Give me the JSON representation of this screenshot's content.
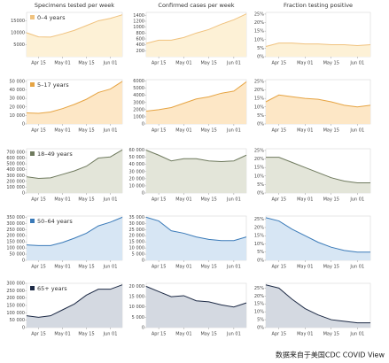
{
  "column_titles": [
    "Specimens tested per week",
    "Confirmed cases per week",
    "Fraction testing positive"
  ],
  "note": "数据来自于美国CDC COVID View",
  "chart_data": [
    {
      "type": "area",
      "categories": [
        null,
        "Apr 15",
        null,
        "May 01",
        null,
        "May 15",
        null,
        "Jun 01",
        null
      ],
      "series": [
        {
          "name": "0–4 years",
          "color": "#f0c27e",
          "fill": "#fdf1d6",
          "values": [
            10000,
            8300,
            8200,
            9500,
            11000,
            13000,
            15000,
            16000,
            17500
          ]
        }
      ],
      "ylim": [
        0,
        18500
      ],
      "yticks": [
        5000,
        10000,
        15000
      ]
    },
    {
      "type": "area",
      "categories": [
        null,
        "Apr 15",
        null,
        "May 01",
        null,
        "May 15",
        null,
        "Jun 01",
        null
      ],
      "series": [
        {
          "color": "#f0c27e",
          "fill": "#fdf1d6",
          "values": [
            450,
            560,
            560,
            650,
            800,
            920,
            1100,
            1250,
            1450
          ]
        }
      ],
      "ylim": [
        0,
        1500
      ],
      "yticks": [
        200,
        400,
        600,
        800,
        1000,
        1200,
        1400
      ]
    },
    {
      "type": "area",
      "categories": [
        null,
        "Apr 15",
        null,
        "May 01",
        null,
        "May 15",
        null,
        "Jun 01",
        null
      ],
      "series": [
        {
          "color": "#f0c27e",
          "fill": "#fdf1d6",
          "values": [
            6,
            8,
            8,
            7.5,
            7.5,
            7,
            7,
            6.5,
            7
          ]
        }
      ],
      "ylim": [
        0,
        26
      ],
      "yticks": [
        {
          "value": 0,
          "label": "0%"
        },
        {
          "value": 5,
          "label": "5%"
        },
        {
          "value": 10,
          "label": "10%"
        },
        {
          "value": 15,
          "label": "15%"
        },
        {
          "value": 20,
          "label": "20%"
        },
        {
          "value": 25,
          "label": "25%"
        }
      ]
    },
    {
      "type": "area",
      "categories": [
        null,
        "Apr 15",
        null,
        "May 01",
        null,
        "May 15",
        null,
        "Jun 01",
        null
      ],
      "series": [
        {
          "name": "5–17 years",
          "color": "#e6a443",
          "fill": "#fde7c6",
          "values": [
            13000,
            12500,
            14000,
            18000,
            23000,
            29000,
            37000,
            41000,
            50000
          ]
        }
      ],
      "ylim": [
        0,
        52000
      ],
      "yticks": [
        {
          "value": 0,
          "label": "0"
        },
        {
          "value": 10000,
          "label": "10 000"
        },
        {
          "value": 20000,
          "label": "20 000"
        },
        {
          "value": 30000,
          "label": "30 000"
        },
        {
          "value": 40000,
          "label": "40 000"
        },
        {
          "value": 50000,
          "label": "50 000"
        }
      ]
    },
    {
      "type": "area",
      "categories": [
        null,
        "Apr 15",
        null,
        "May 01",
        null,
        "May 15",
        null,
        "Jun 01",
        null
      ],
      "series": [
        {
          "color": "#e6a443",
          "fill": "#fde7c6",
          "values": [
            1800,
            2000,
            2300,
            2900,
            3500,
            3800,
            4300,
            4600,
            5900
          ]
        }
      ],
      "ylim": [
        0,
        6200
      ],
      "yticks": [
        0,
        1000,
        2000,
        3000,
        4000,
        5000,
        6000
      ]
    },
    {
      "type": "area",
      "categories": [
        null,
        "Apr 15",
        null,
        "May 01",
        null,
        "May 15",
        null,
        "Jun 01",
        null
      ],
      "series": [
        {
          "color": "#e6a443",
          "fill": "#fde7c6",
          "values": [
            13,
            17,
            16,
            15,
            14.5,
            13,
            11,
            10,
            11
          ]
        }
      ],
      "ylim": [
        0,
        26
      ],
      "yticks": [
        {
          "value": 0,
          "label": "0%"
        },
        {
          "value": 5,
          "label": "5%"
        },
        {
          "value": 10,
          "label": "10%"
        },
        {
          "value": 15,
          "label": "15%"
        },
        {
          "value": 20,
          "label": "20%"
        },
        {
          "value": 25,
          "label": "25%"
        }
      ]
    },
    {
      "type": "area",
      "categories": [
        null,
        "Apr 15",
        null,
        "May 01",
        null,
        "May 15",
        null,
        "Jun 01",
        null
      ],
      "series": [
        {
          "name": "18–49 years",
          "color": "#6f7a5e",
          "fill": "#e3e5d9",
          "values": [
            280000,
            250000,
            260000,
            320000,
            380000,
            460000,
            600000,
            620000,
            740000
          ]
        }
      ],
      "ylim": [
        0,
        760000
      ],
      "yticks": [
        {
          "value": 0,
          "label": "0"
        },
        {
          "value": 100000,
          "label": "100 000"
        },
        {
          "value": 200000,
          "label": "200 000"
        },
        {
          "value": 300000,
          "label": "300 000"
        },
        {
          "value": 400000,
          "label": "400 000"
        },
        {
          "value": 500000,
          "label": "500 000"
        },
        {
          "value": 600000,
          "label": "600 000"
        },
        {
          "value": 700000,
          "label": "700 000"
        }
      ]
    },
    {
      "type": "area",
      "categories": [
        null,
        "Apr 15",
        null,
        "May 01",
        null,
        "May 15",
        null,
        "Jun 01",
        null
      ],
      "series": [
        {
          "color": "#6f7a5e",
          "fill": "#e3e5d9",
          "values": [
            60000,
            53000,
            45000,
            48000,
            48000,
            45000,
            44000,
            45000,
            53000
          ]
        }
      ],
      "ylim": [
        0,
        62000
      ],
      "yticks": [
        {
          "value": 0,
          "label": "0"
        },
        {
          "value": 10000,
          "label": "10 000"
        },
        {
          "value": 20000,
          "label": "20 000"
        },
        {
          "value": 30000,
          "label": "30 000"
        },
        {
          "value": 40000,
          "label": "40 000"
        },
        {
          "value": 50000,
          "label": "50 000"
        },
        {
          "value": 60000,
          "label": "60 000"
        }
      ]
    },
    {
      "type": "area",
      "categories": [
        null,
        "Apr 15",
        null,
        "May 01",
        null,
        "May 15",
        null,
        "Jun 01",
        null
      ],
      "series": [
        {
          "color": "#6f7a5e",
          "fill": "#e3e5d9",
          "values": [
            21,
            21,
            18,
            15,
            12,
            9,
            7,
            6,
            6
          ]
        }
      ],
      "ylim": [
        0,
        26
      ],
      "yticks": [
        {
          "value": 0,
          "label": "0%"
        },
        {
          "value": 5,
          "label": "5%"
        },
        {
          "value": 10,
          "label": "10%"
        },
        {
          "value": 15,
          "label": "15%"
        },
        {
          "value": 20,
          "label": "20%"
        },
        {
          "value": 25,
          "label": "25%"
        }
      ]
    },
    {
      "type": "area",
      "categories": [
        null,
        "Apr 15",
        null,
        "May 01",
        null,
        "May 15",
        null,
        "Jun 01",
        null
      ],
      "series": [
        {
          "name": "50–64 years",
          "color": "#3a7ab8",
          "fill": "#d7e6f4",
          "values": [
            125000,
            120000,
            120000,
            145000,
            180000,
            220000,
            280000,
            310000,
            350000
          ]
        }
      ],
      "ylim": [
        0,
        360000
      ],
      "yticks": [
        {
          "value": 0,
          "label": "0"
        },
        {
          "value": 50000,
          "label": "50 000"
        },
        {
          "value": 100000,
          "label": "100 000"
        },
        {
          "value": 150000,
          "label": "150 000"
        },
        {
          "value": 200000,
          "label": "200 000"
        },
        {
          "value": 250000,
          "label": "250 000"
        },
        {
          "value": 300000,
          "label": "300 000"
        },
        {
          "value": 350000,
          "label": "350 000"
        }
      ]
    },
    {
      "type": "area",
      "categories": [
        null,
        "Apr 15",
        null,
        "May 01",
        null,
        "May 15",
        null,
        "Jun 01",
        null
      ],
      "series": [
        {
          "color": "#3a7ab8",
          "fill": "#d7e6f4",
          "values": [
            35000,
            32000,
            24000,
            22000,
            19000,
            17000,
            16000,
            16000,
            19000
          ]
        }
      ],
      "ylim": [
        0,
        36000
      ],
      "yticks": [
        {
          "value": 0,
          "label": "0"
        },
        {
          "value": 5000,
          "label": "5 000"
        },
        {
          "value": 10000,
          "label": "10 000"
        },
        {
          "value": 15000,
          "label": "15 000"
        },
        {
          "value": 20000,
          "label": "20 000"
        },
        {
          "value": 25000,
          "label": "25 000"
        },
        {
          "value": 30000,
          "label": "30 000"
        },
        {
          "value": 35000,
          "label": "35 000"
        }
      ]
    },
    {
      "type": "area",
      "categories": [
        null,
        "Apr 15",
        null,
        "May 01",
        null,
        "May 15",
        null,
        "Jun 01",
        null
      ],
      "series": [
        {
          "color": "#3a7ab8",
          "fill": "#d7e6f4",
          "values": [
            26,
            24,
            19,
            15,
            11,
            8,
            6,
            5,
            5
          ]
        }
      ],
      "ylim": [
        0,
        27
      ],
      "yticks": [
        {
          "value": 0,
          "label": "0%"
        },
        {
          "value": 5,
          "label": "5%"
        },
        {
          "value": 10,
          "label": "10%"
        },
        {
          "value": 15,
          "label": "15%"
        },
        {
          "value": 20,
          "label": "20%"
        },
        {
          "value": 25,
          "label": "25%"
        }
      ]
    },
    {
      "type": "area",
      "categories": [
        null,
        "Apr 15",
        null,
        "May 01",
        null,
        "May 15",
        null,
        "Jun 01",
        null
      ],
      "series": [
        {
          "name": "65+ years",
          "color": "#1d2a45",
          "fill": "#d4d9e1",
          "values": [
            80000,
            70000,
            80000,
            120000,
            160000,
            220000,
            260000,
            260000,
            290000
          ]
        }
      ],
      "ylim": [
        0,
        300000
      ],
      "yticks": [
        {
          "value": 0,
          "label": "0"
        },
        {
          "value": 50000,
          "label": "50 000"
        },
        {
          "value": 100000,
          "label": "100 000"
        },
        {
          "value": 150000,
          "label": "150 000"
        },
        {
          "value": 200000,
          "label": "200 000"
        },
        {
          "value": 250000,
          "label": "250 000"
        },
        {
          "value": 300000,
          "label": "300 000"
        }
      ]
    },
    {
      "type": "area",
      "categories": [
        null,
        "Apr 15",
        null,
        "May 01",
        null,
        "May 15",
        null,
        "Jun 01",
        null
      ],
      "series": [
        {
          "color": "#1d2a45",
          "fill": "#d4d9e1",
          "values": [
            20000,
            17500,
            15000,
            15500,
            13000,
            12500,
            11000,
            10000,
            12000
          ]
        }
      ],
      "ylim": [
        0,
        21500
      ],
      "yticks": [
        {
          "value": 0,
          "label": "0"
        },
        {
          "value": 5000,
          "label": "5 000"
        },
        {
          "value": 10000,
          "label": "10 000"
        },
        {
          "value": 15000,
          "label": "15 000"
        },
        {
          "value": 20000,
          "label": "20 000"
        }
      ]
    },
    {
      "type": "area",
      "categories": [
        null,
        "Apr 15",
        null,
        "May 01",
        null,
        "May 15",
        null,
        "Jun 01",
        null
      ],
      "series": [
        {
          "color": "#1d2a45",
          "fill": "#d4d9e1",
          "values": [
            27,
            25,
            18,
            12,
            8,
            5,
            4,
            3,
            3
          ]
        }
      ],
      "ylim": [
        0,
        28
      ],
      "yticks": [
        {
          "value": 0,
          "label": "0%"
        },
        {
          "value": 5,
          "label": "5%"
        },
        {
          "value": 10,
          "label": "10%"
        },
        {
          "value": 15,
          "label": "15%"
        },
        {
          "value": 20,
          "label": "20%"
        },
        {
          "value": 25,
          "label": "25%"
        }
      ]
    }
  ]
}
